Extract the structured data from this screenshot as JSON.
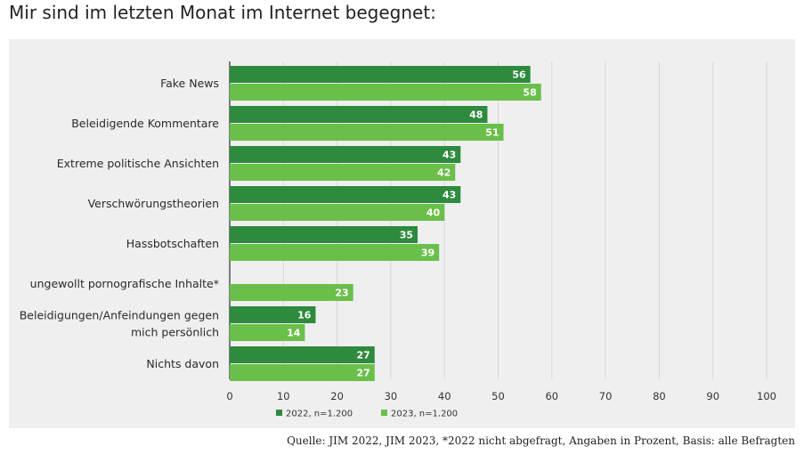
{
  "page": {
    "title": "Mir sind im letzten Monat im Internet begegnet:",
    "source": "Quelle: JIM 2022, JIM 2023, *2022 nicht abgefragt, Angaben in Prozent, Basis: alle Befragten"
  },
  "chart_data": {
    "type": "bar",
    "orientation": "horizontal",
    "title": "Mir sind im letzten Monat im Internet begegnet:",
    "categories": [
      [
        "Fake News"
      ],
      [
        "Beleidigende Kommentare"
      ],
      [
        "Extreme politische Ansichten"
      ],
      [
        "Verschwörungstheorien"
      ],
      [
        "Hassbotschaften"
      ],
      [
        "ungewollt pornografische Inhalte*"
      ],
      [
        "Beleidigungen/Anfeindungen gegen",
        "mich persönlich"
      ],
      [
        "Nichts davon"
      ]
    ],
    "series": [
      {
        "name": "2022, n=1.200",
        "color": "#2e8b3e",
        "values": [
          56,
          48,
          43,
          43,
          35,
          null,
          16,
          27
        ]
      },
      {
        "name": "2023, n=1.200",
        "color": "#6abf4b",
        "values": [
          58,
          51,
          42,
          40,
          39,
          23,
          14,
          27
        ]
      }
    ],
    "xlim": [
      0,
      100
    ],
    "xticks": [
      0,
      10,
      20,
      30,
      40,
      50,
      60,
      70,
      80,
      90,
      100
    ],
    "grid": true,
    "legend": "bottom-center",
    "data_labels": true
  }
}
